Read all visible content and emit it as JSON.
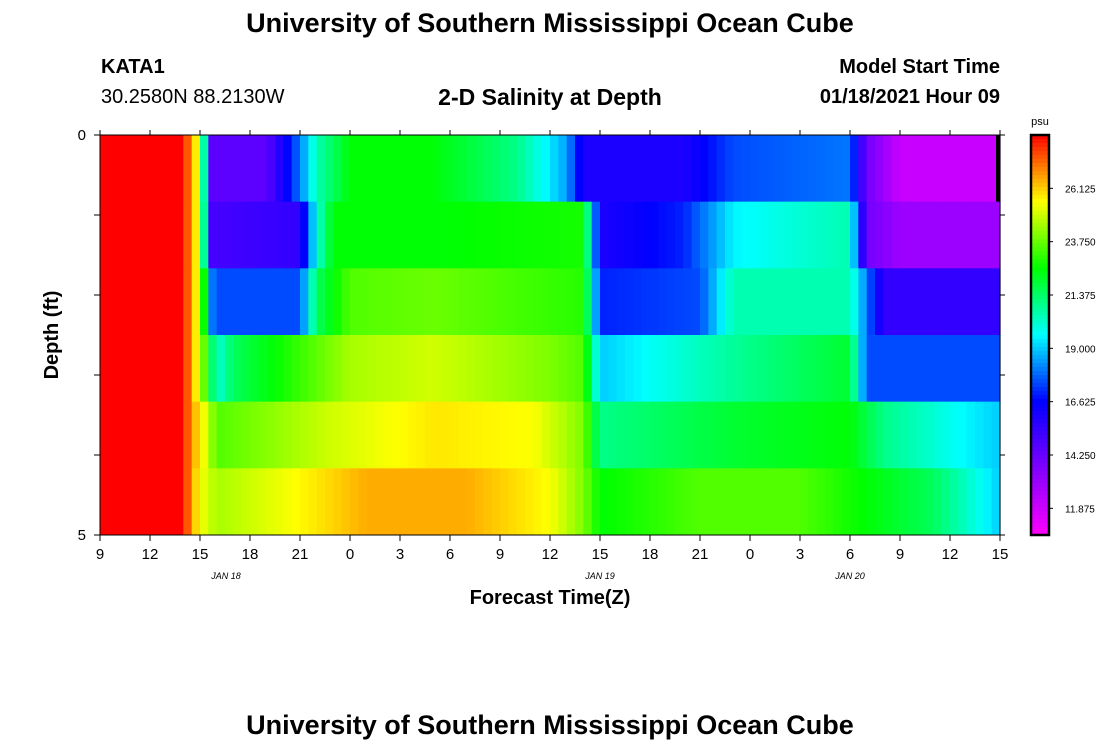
{
  "header": {
    "title": "University of Southern Mississippi Ocean Cube",
    "station": "KATA1",
    "coords": "30.2580N 88.2130W",
    "subtitle": "2-D Salinity at Depth",
    "model_label": "Model Start Time",
    "model_time": "01/18/2021 Hour 09"
  },
  "footer": {
    "title": "University of Southern Mississippi Ocean Cube"
  },
  "chart_data": {
    "type": "heatmap",
    "title": "2-D Salinity at Depth",
    "xlabel": "Forecast Time(Z)",
    "ylabel": "Depth (ft)",
    "units": "psu",
    "x_tick_labels": [
      "9",
      "12",
      "15",
      "18",
      "21",
      "0",
      "3",
      "6",
      "9",
      "12",
      "15",
      "18",
      "21",
      "0",
      "3",
      "6",
      "9",
      "12",
      "15"
    ],
    "date_labels": [
      "JAN 18",
      "JAN 19",
      "JAN 20"
    ],
    "y_tick_labels": [
      "0",
      "5"
    ],
    "ylim": [
      0,
      5
    ],
    "x_hours_since_start": [
      0,
      54
    ],
    "colorbar_ticks": [
      "26.125",
      "23.750",
      "21.375",
      "19.000",
      "16.625",
      "14.250",
      "11.875"
    ],
    "colorbar_range": [
      10.6875,
      28.5
    ],
    "rows": [
      {
        "depth_band": "0-1 ft",
        "keyframes": [
          [
            0,
            28.5
          ],
          [
            5,
            28.5
          ],
          [
            5.5,
            26.5
          ],
          [
            6,
            25
          ],
          [
            6.6,
            14.5
          ],
          [
            10,
            14.5
          ],
          [
            12,
            18
          ],
          [
            13,
            20.5
          ],
          [
            15,
            22.5
          ],
          [
            20,
            22.5
          ],
          [
            25,
            21
          ],
          [
            28,
            18.5
          ],
          [
            29,
            16
          ],
          [
            35,
            16
          ],
          [
            38,
            17.5
          ],
          [
            45,
            18
          ],
          [
            46,
            14
          ],
          [
            48,
            12
          ],
          [
            54,
            12
          ]
        ]
      },
      {
        "depth_band": "1-2 ft",
        "keyframes": [
          [
            0,
            28.5
          ],
          [
            5,
            28.5
          ],
          [
            5.5,
            26.5
          ],
          [
            6,
            25
          ],
          [
            6.6,
            15
          ],
          [
            12,
            15.5
          ],
          [
            13,
            20
          ],
          [
            14,
            22.5
          ],
          [
            20,
            22.5
          ],
          [
            29,
            22.8
          ],
          [
            30,
            16
          ],
          [
            35,
            17
          ],
          [
            38,
            19.5
          ],
          [
            45,
            20.5
          ],
          [
            46,
            14
          ],
          [
            48,
            13
          ],
          [
            54,
            13
          ]
        ]
      },
      {
        "depth_band": "2-3 ft",
        "keyframes": [
          [
            0,
            28.5
          ],
          [
            5,
            28.5
          ],
          [
            5.5,
            26.5
          ],
          [
            6,
            25
          ],
          [
            6.8,
            17.5
          ],
          [
            12,
            17.5
          ],
          [
            13,
            21.5
          ],
          [
            15,
            23.5
          ],
          [
            20,
            23.8
          ],
          [
            29,
            23
          ],
          [
            30,
            17
          ],
          [
            36,
            17.5
          ],
          [
            38,
            20.5
          ],
          [
            45,
            20.5
          ],
          [
            46,
            18
          ],
          [
            47,
            15.5
          ],
          [
            54,
            15.5
          ]
        ]
      },
      {
        "depth_band": "3-4 ft",
        "keyframes": [
          [
            0,
            28.5
          ],
          [
            5,
            28.5
          ],
          [
            5.5,
            26.5
          ],
          [
            6,
            25
          ],
          [
            7,
            20
          ],
          [
            8,
            21.5
          ],
          [
            15,
            24.5
          ],
          [
            20,
            25
          ],
          [
            27,
            24
          ],
          [
            29,
            23.5
          ],
          [
            30,
            19
          ],
          [
            38,
            20.8
          ],
          [
            45,
            22
          ],
          [
            46,
            17.5
          ],
          [
            54,
            17.5
          ]
        ]
      },
      {
        "depth_band": "4-5 ft",
        "keyframes": [
          [
            0,
            28.5
          ],
          [
            5,
            28.5
          ],
          [
            5.5,
            26.5
          ],
          [
            6,
            26
          ],
          [
            7,
            23.5
          ],
          [
            14,
            25
          ],
          [
            20,
            25.8
          ],
          [
            26,
            25.5
          ],
          [
            29,
            24
          ],
          [
            30,
            21
          ],
          [
            38,
            22
          ],
          [
            45,
            22.5
          ],
          [
            47,
            21
          ],
          [
            52,
            19.5
          ],
          [
            54,
            19
          ]
        ]
      },
      {
        "depth_band": "5 ft",
        "keyframes": [
          [
            0,
            28.5
          ],
          [
            5,
            28.5
          ],
          [
            5.5,
            26.5
          ],
          [
            6,
            25.5
          ],
          [
            7,
            24.5
          ],
          [
            13,
            25.8
          ],
          [
            16,
            26.5
          ],
          [
            22,
            26.5
          ],
          [
            27,
            25.5
          ],
          [
            29,
            24
          ],
          [
            30,
            22.5
          ],
          [
            36,
            23.5
          ],
          [
            42,
            23.5
          ],
          [
            46,
            22.5
          ],
          [
            50,
            21.5
          ],
          [
            54,
            19
          ]
        ]
      }
    ]
  },
  "colors": {
    "scale": [
      "#ff00ff",
      "#8000ff",
      "#0000ff",
      "#00ffff",
      "#00ff00",
      "#ffff00",
      "#ff0000"
    ]
  }
}
